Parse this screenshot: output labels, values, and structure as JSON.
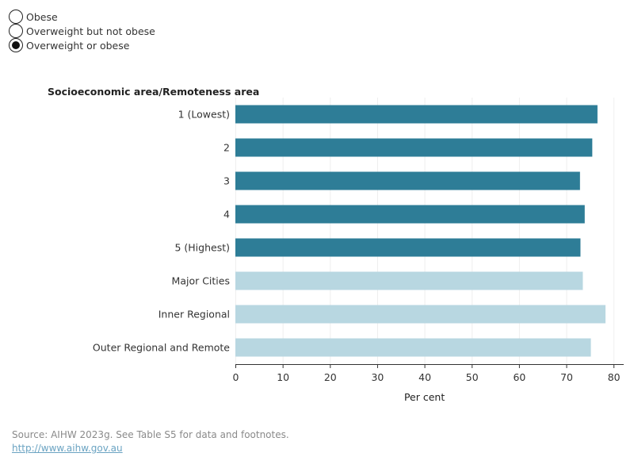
{
  "filter": {
    "options": [
      "Obese",
      "Overweight but not obese",
      "Overweight or obese"
    ],
    "selected_index": 2
  },
  "chart_data": {
    "type": "bar",
    "orientation": "horizontal",
    "title": "",
    "category_axis_label": "Socioeconomic area/Remoteness area",
    "categories": [
      "1 (Lowest)",
      "2",
      "3",
      "4",
      "5 (Highest)",
      "Major Cities",
      "Inner Regional",
      "Outer Regional and Remote"
    ],
    "values": [
      76.6,
      75.5,
      72.9,
      73.9,
      73.0,
      73.5,
      78.3,
      75.2
    ],
    "bar_colors": [
      "#2e7d97",
      "#2e7d97",
      "#2e7d97",
      "#2e7d97",
      "#2e7d97",
      "#b8d7e1",
      "#b8d7e1",
      "#b8d7e1"
    ],
    "xlabel": "Per cent",
    "xlim": [
      0,
      80
    ],
    "xticks": [
      0,
      10,
      20,
      30,
      40,
      50,
      60,
      70,
      80
    ],
    "grid": true
  },
  "footer": {
    "source": "Source: AIHW 2023g. See Table S5 for data and footnotes.",
    "link": "http://www.aihw.gov.au"
  }
}
